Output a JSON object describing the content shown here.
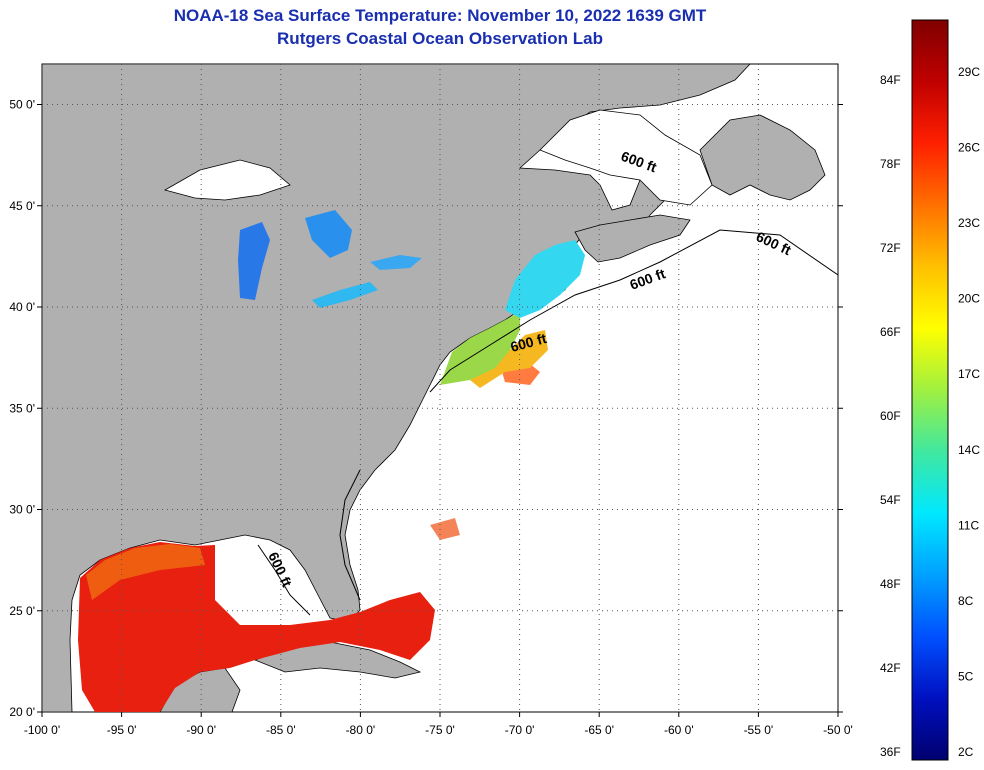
{
  "title": "NOAA-18 Sea Surface Temperature:  November 10, 2022 1639 GMT",
  "subtitle": "Rutgers Coastal Ocean Observation Lab",
  "map": {
    "lon_range": [
      -100,
      -50
    ],
    "lat_range": [
      20,
      52
    ],
    "lon_labels": [
      "-100 0'",
      "-95 0'",
      "-90 0'",
      "-85 0'",
      "-80 0'",
      "-75 0'",
      "-70 0'",
      "-65 0'",
      "-60 0'",
      "-55 0'",
      "-50 0'"
    ],
    "lat_labels": [
      "20 0'",
      "25 0'",
      "30 0'",
      "35 0'",
      "40 0'",
      "45 0'",
      "50 0'"
    ],
    "grid": "dotted",
    "contour_label": "600 ft",
    "colors": {
      "land": "#b0b0b0",
      "ocean_nodata": "#ffffff",
      "gulf_sst": "#e82010",
      "great_lakes_sst": "#2080e8"
    }
  },
  "colorbar": {
    "f_labels": [
      "84F",
      "78F",
      "72F",
      "66F",
      "60F",
      "54F",
      "48F",
      "42F",
      "36F"
    ],
    "c_labels": [
      "29C",
      "26C",
      "23C",
      "20C",
      "17C",
      "14C",
      "11C",
      "8C",
      "5C",
      "2C"
    ],
    "stops": [
      "#00006e",
      "#0010c0",
      "#0050ff",
      "#00a0ff",
      "#00e8ff",
      "#40e8a0",
      "#a0f040",
      "#ffff00",
      "#ffc000",
      "#ff7000",
      "#ff2000",
      "#c00000",
      "#800000"
    ]
  }
}
